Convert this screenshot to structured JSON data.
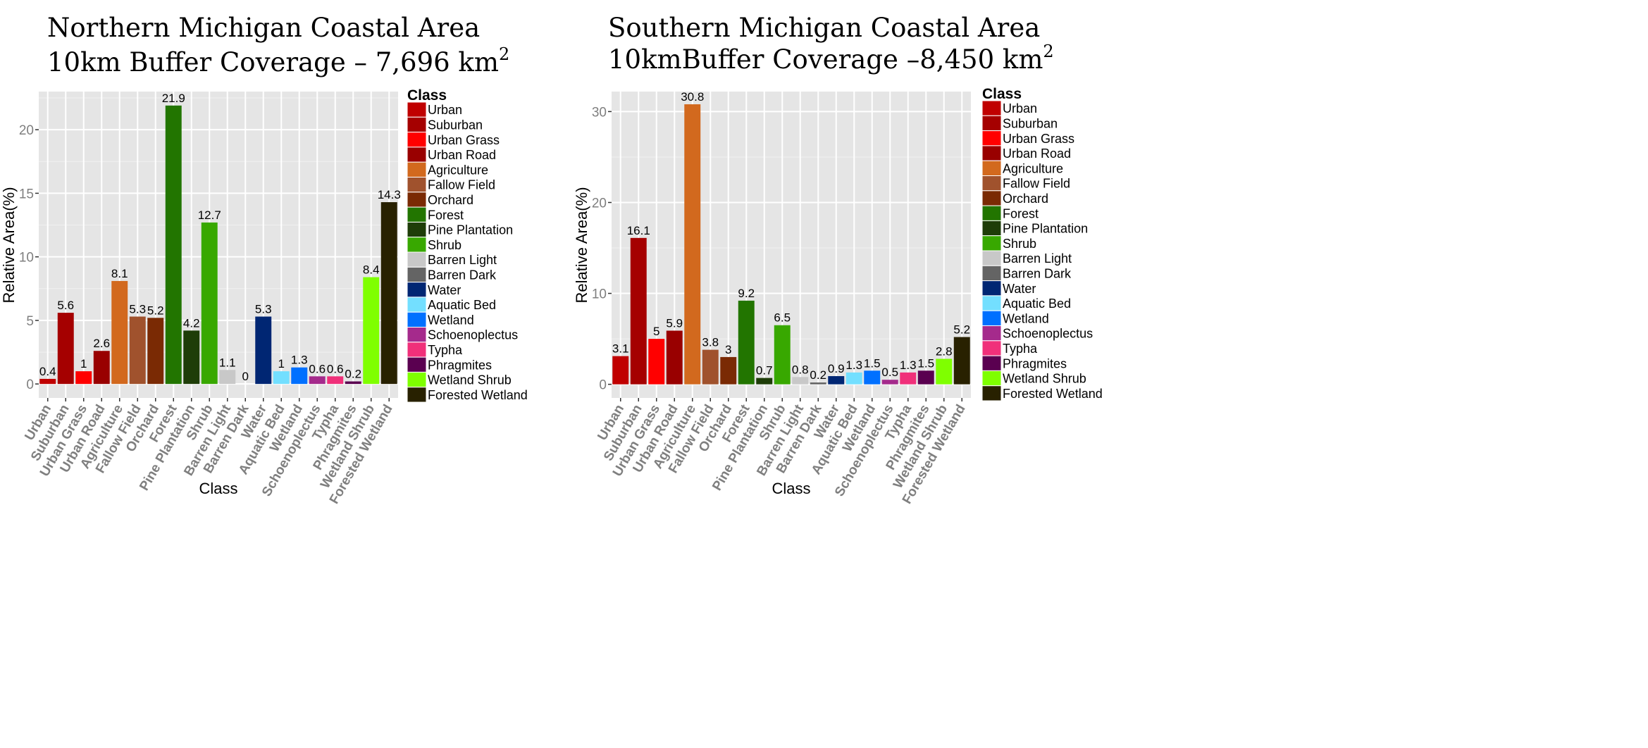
{
  "colors": {
    "panel_background": "#E5E5E5",
    "grid_major": "#FFFFFF",
    "grid_minor": "#F1F1F1",
    "tick_label": "#7F7F7F"
  },
  "classes": [
    {
      "name": "Urban",
      "color": "#C00000"
    },
    {
      "name": "Suburban",
      "color": "#A50000"
    },
    {
      "name": "Urban Grass",
      "color": "#FF0000"
    },
    {
      "name": "Urban Road",
      "color": "#990000"
    },
    {
      "name": "Agriculture",
      "color": "#D2691E"
    },
    {
      "name": "Fallow Field",
      "color": "#A0522D"
    },
    {
      "name": "Orchard",
      "color": "#7A2A04"
    },
    {
      "name": "Forest",
      "color": "#227500"
    },
    {
      "name": "Pine Plantation",
      "color": "#1E3D08"
    },
    {
      "name": "Shrub",
      "color": "#38A800"
    },
    {
      "name": "Barren Light",
      "color": "#C8C8C8"
    },
    {
      "name": "Barren Dark",
      "color": "#646464"
    },
    {
      "name": "Water",
      "color": "#002673"
    },
    {
      "name": "Aquatic Bed",
      "color": "#73DFFF"
    },
    {
      "name": "Wetland",
      "color": "#0070FF"
    },
    {
      "name": "Schoenoplectus",
      "color": "#A52A8C"
    },
    {
      "name": "Typha",
      "color": "#F0307A"
    },
    {
      "name": "Phragmites",
      "color": "#5A0050"
    },
    {
      "name": "Wetland Shrub",
      "color": "#7FFF00"
    },
    {
      "name": "Forested Wetland",
      "color": "#282100"
    }
  ],
  "chart_data": [
    {
      "type": "bar",
      "title_line1": "Northern Michigan Coastal Area",
      "title_line2": "10km Buffer Coverage – 7,696 km",
      "title_sup": "2",
      "xlabel": "Class",
      "ylabel": "Relative Area(%)",
      "legend_title": "Class",
      "legend_position": "right",
      "grid": true,
      "ylim": [
        -1.1,
        23.0
      ],
      "yticks": [
        0,
        5,
        10,
        15,
        20
      ],
      "categories": [
        "Urban",
        "Suburban",
        "Urban Grass",
        "Urban Road",
        "Agriculture",
        "Fallow Field",
        "Orchard",
        "Forest",
        "Pine Plantation",
        "Shrub",
        "Barren Light",
        "Barren Dark",
        "Water",
        "Aquatic Bed",
        "Wetland",
        "Schoenoplectus",
        "Typha",
        "Phragmites",
        "Wetland Shrub",
        "Forested Wetland"
      ],
      "values": [
        0.4,
        5.6,
        1,
        2.6,
        8.1,
        5.3,
        5.2,
        21.9,
        4.2,
        12.7,
        1.1,
        0,
        5.3,
        1,
        1.3,
        0.6,
        0.6,
        0.2,
        8.4,
        14.3
      ]
    },
    {
      "type": "bar",
      "title_line1": "Southern Michigan Coastal Area",
      "title_line2": "10kmBuffer Coverage –8,450 km",
      "title_sup": "2",
      "xlabel": "Class",
      "ylabel": "Relative Area(%)",
      "legend_title": "Class",
      "legend_position": "right",
      "grid": true,
      "ylim": [
        -1.5,
        32.2
      ],
      "yticks": [
        0,
        10,
        20,
        30
      ],
      "categories": [
        "Urban",
        "Suburban",
        "Urban Grass",
        "Urban Road",
        "Agriculture",
        "Fallow Field",
        "Orchard",
        "Forest",
        "Pine Plantation",
        "Shrub",
        "Barren Light",
        "Barren Dark",
        "Water",
        "Aquatic Bed",
        "Wetland",
        "Schoenoplectus",
        "Typha",
        "Phragmites",
        "Wetland Shrub",
        "Forested Wetland"
      ],
      "values": [
        3.1,
        16.1,
        5,
        5.9,
        30.8,
        3.8,
        3,
        9.2,
        0.7,
        6.5,
        0.8,
        0.2,
        0.9,
        1.3,
        1.5,
        0.5,
        1.3,
        1.5,
        2.8,
        5.2
      ]
    }
  ]
}
